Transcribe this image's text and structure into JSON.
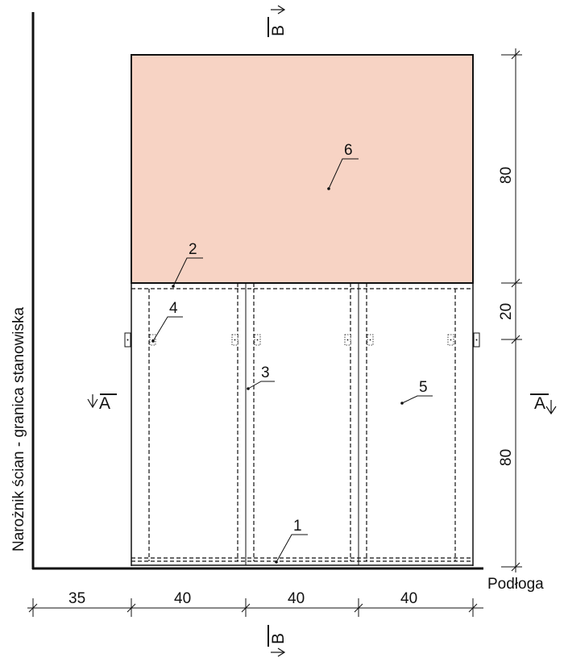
{
  "wall_label": "Narożnik ścian - granica stanowiska",
  "floor_label": "Podłoga",
  "section_a": "A",
  "section_b": "B",
  "callouts": [
    "1",
    "2",
    "3",
    "4",
    "5",
    "6"
  ],
  "horizontal_dims": [
    "35",
    "40",
    "40",
    "40"
  ],
  "vertical_dims": [
    "80",
    "20",
    "80"
  ],
  "colors": {
    "panel_fill": "#f7d3c4",
    "line": "#111111"
  }
}
